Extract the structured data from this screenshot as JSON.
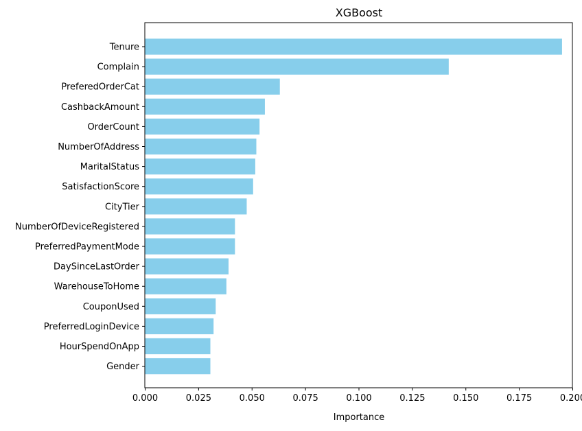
{
  "chart_data": {
    "type": "bar",
    "orientation": "horizontal",
    "title": "XGBoost",
    "xlabel": "Importance",
    "ylabel": "",
    "categories": [
      "Tenure",
      "Complain",
      "PreferedOrderCat",
      "CashbackAmount",
      "OrderCount",
      "NumberOfAddress",
      "MaritalStatus",
      "SatisfactionScore",
      "CityTier",
      "NumberOfDeviceRegistered",
      "PreferredPaymentMode",
      "DaySinceLastOrder",
      "WarehouseToHome",
      "CouponUsed",
      "PreferredLoginDevice",
      "HourSpendOnApp",
      "Gender"
    ],
    "values": [
      0.195,
      0.142,
      0.063,
      0.056,
      0.0535,
      0.052,
      0.0515,
      0.0505,
      0.0475,
      0.042,
      0.042,
      0.039,
      0.038,
      0.033,
      0.032,
      0.0305,
      0.0305
    ],
    "xlim": [
      0,
      0.2
    ],
    "xticks": [
      "0.000",
      "0.025",
      "0.050",
      "0.075",
      "0.100",
      "0.125",
      "0.150",
      "0.175",
      "0.200"
    ],
    "bar_color": "#87ceeb",
    "grid": false,
    "legend": "none"
  }
}
